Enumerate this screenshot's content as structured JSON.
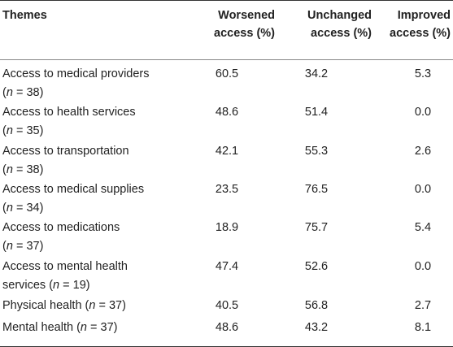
{
  "header": {
    "themes": "Themes",
    "worsened": [
      "Worsened",
      "access (%)"
    ],
    "unchanged": [
      "Unchanged",
      "access (%)"
    ],
    "improved": [
      "Improved",
      "access (%)"
    ]
  },
  "rows": [
    {
      "theme": [
        "Access to medical providers",
        "(n = 38)"
      ],
      "worsened": "60.5",
      "unchanged": "34.2",
      "improved": "5.3"
    },
    {
      "theme": [
        "Access to health services",
        "(n = 35)"
      ],
      "worsened": "48.6",
      "unchanged": "51.4",
      "improved": "0.0"
    },
    {
      "theme": [
        "Access to transportation",
        "(n = 38)"
      ],
      "worsened": "42.1",
      "unchanged": "55.3",
      "improved": "2.6"
    },
    {
      "theme": [
        "Access to medical supplies",
        "(n = 34)"
      ],
      "worsened": "23.5",
      "unchanged": "76.5",
      "improved": "0.0"
    },
    {
      "theme": [
        "Access to medications",
        "(n = 37)"
      ],
      "worsened": "18.9",
      "unchanged": "75.7",
      "improved": "5.4"
    },
    {
      "theme": [
        "Access to mental health",
        "services (n = 19)"
      ],
      "worsened": "47.4",
      "unchanged": "52.6",
      "improved": "0.0"
    },
    {
      "theme": [
        "Physical health (n = 37)"
      ],
      "worsened": "40.5",
      "unchanged": "56.8",
      "improved": "2.7"
    },
    {
      "theme": [
        "Mental health (n = 37)"
      ],
      "worsened": "48.6",
      "unchanged": "43.2",
      "improved": "8.1"
    }
  ]
}
